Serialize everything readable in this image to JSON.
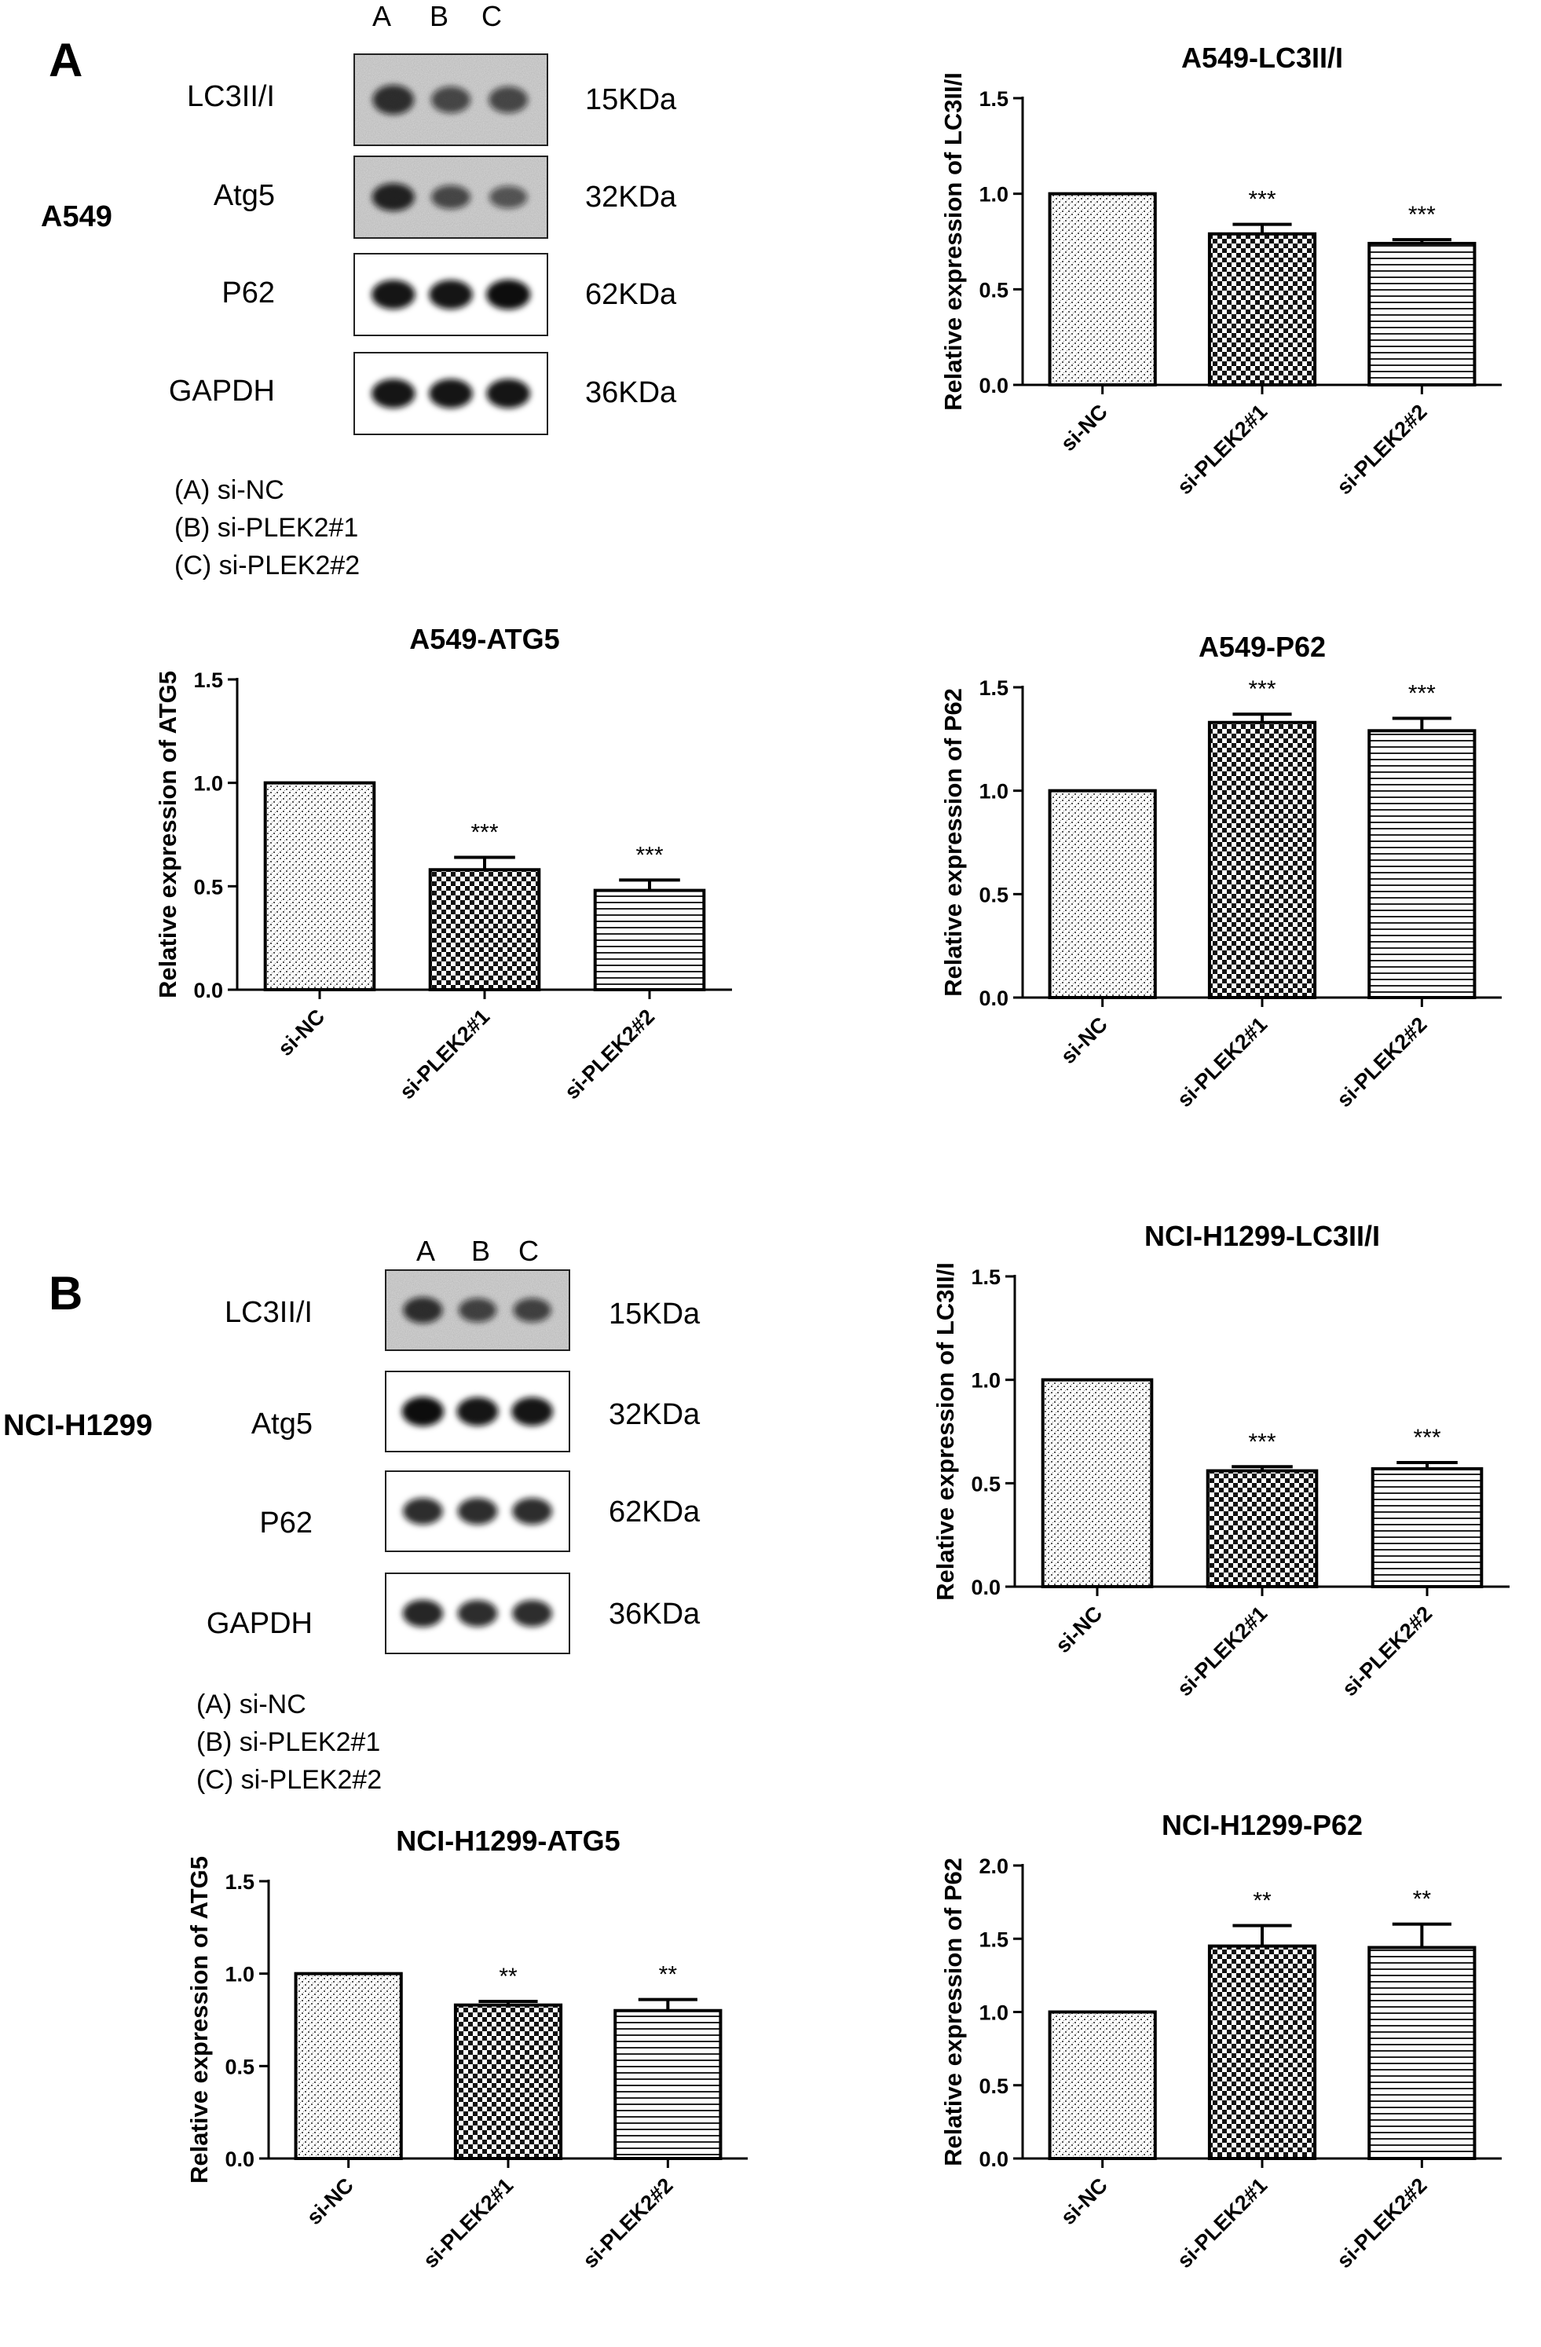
{
  "colors": {
    "axis": "#000000",
    "band": "#111111",
    "blot_bg": "#ffffff"
  },
  "patterns": [
    "speckle",
    "checker",
    "hlines"
  ],
  "panels": [
    {
      "letter": "A",
      "cell_line": "A549",
      "lanes": [
        "A",
        "B",
        "C"
      ],
      "blots": [
        {
          "protein": "LC3II/I",
          "kda": "15KDa",
          "bands": [
            0.75,
            0.55,
            0.55
          ],
          "bg": "grainy"
        },
        {
          "protein": "Atg5",
          "kda": "32KDa",
          "bands": [
            0.85,
            0.55,
            0.45
          ],
          "bg": "grainy"
        },
        {
          "protein": "P62",
          "kda": "62KDa",
          "bands": [
            0.95,
            0.95,
            1.0
          ],
          "bg": "clean"
        },
        {
          "protein": "GAPDH",
          "kda": "36KDa",
          "bands": [
            0.95,
            0.95,
            0.95
          ],
          "bg": "clean"
        }
      ],
      "legend": [
        "(A) si-NC",
        "(B) si-PLEK2#1",
        "(C) si-PLEK2#2"
      ]
    },
    {
      "letter": "B",
      "cell_line": "NCI-H1299",
      "lanes": [
        "A",
        "B",
        "C"
      ],
      "blots": [
        {
          "protein": "LC3II/I",
          "kda": "15KDa",
          "bands": [
            0.75,
            0.6,
            0.6
          ],
          "bg": "grainy"
        },
        {
          "protein": "Atg5",
          "kda": "32KDa",
          "bands": [
            1.0,
            0.95,
            0.95
          ],
          "bg": "clean"
        },
        {
          "protein": "P62",
          "kda": "62KDa",
          "bands": [
            0.8,
            0.8,
            0.8
          ],
          "bg": "clean"
        },
        {
          "protein": "GAPDH",
          "kda": "36KDa",
          "bands": [
            0.85,
            0.8,
            0.8
          ],
          "bg": "clean"
        }
      ],
      "legend": [
        "(A) si-NC",
        "(B) si-PLEK2#1",
        "(C) si-PLEK2#2"
      ]
    }
  ],
  "chart_data": [
    {
      "type": "bar",
      "title": "A549-LC3II/I",
      "ylabel": "Relative expression of LC3II/I",
      "categories": [
        "si-NC",
        "si-PLEK2#1",
        "si-PLEK2#2"
      ],
      "values": [
        1.0,
        0.79,
        0.74
      ],
      "errors": [
        0,
        0.05,
        0.02
      ],
      "significance": [
        "",
        "***",
        "***"
      ],
      "ylim": [
        0,
        1.5
      ],
      "yticks": [
        "0.0",
        "0.5",
        "1.0",
        "1.5"
      ]
    },
    {
      "type": "bar",
      "title": "A549-ATG5",
      "ylabel": "Relative expression of ATG5",
      "categories": [
        "si-NC",
        "si-PLEK2#1",
        "si-PLEK2#2"
      ],
      "values": [
        1.0,
        0.58,
        0.48
      ],
      "errors": [
        0,
        0.06,
        0.05
      ],
      "significance": [
        "",
        "***",
        "***"
      ],
      "ylim": [
        0,
        1.5
      ],
      "yticks": [
        "0.0",
        "0.5",
        "1.0",
        "1.5"
      ]
    },
    {
      "type": "bar",
      "title": "A549-P62",
      "ylabel": "Relative expression of P62",
      "categories": [
        "si-NC",
        "si-PLEK2#1",
        "si-PLEK2#2"
      ],
      "values": [
        1.0,
        1.33,
        1.29
      ],
      "errors": [
        0,
        0.04,
        0.06
      ],
      "significance": [
        "",
        "***",
        "***"
      ],
      "ylim": [
        0,
        1.5
      ],
      "yticks": [
        "0.0",
        "0.5",
        "1.0",
        "1.5"
      ]
    },
    {
      "type": "bar",
      "title": "NCI-H1299-LC3II/I",
      "ylabel": "Relative expression of LC3II/I",
      "categories": [
        "si-NC",
        "si-PLEK2#1",
        "si-PLEK2#2"
      ],
      "values": [
        1.0,
        0.56,
        0.57
      ],
      "errors": [
        0,
        0.02,
        0.03
      ],
      "significance": [
        "",
        "***",
        "***"
      ],
      "ylim": [
        0,
        1.5
      ],
      "yticks": [
        "0.0",
        "0.5",
        "1.0",
        "1.5"
      ]
    },
    {
      "type": "bar",
      "title": "NCI-H1299-ATG5",
      "ylabel": "Relative expression of ATG5",
      "categories": [
        "si-NC",
        "si-PLEK2#1",
        "si-PLEK2#2"
      ],
      "values": [
        1.0,
        0.83,
        0.8
      ],
      "errors": [
        0,
        0.02,
        0.06
      ],
      "significance": [
        "",
        "**",
        "**"
      ],
      "ylim": [
        0,
        1.5
      ],
      "yticks": [
        "0.0",
        "0.5",
        "1.0",
        "1.5"
      ]
    },
    {
      "type": "bar",
      "title": "NCI-H1299-P62",
      "ylabel": "Relative expression of P62",
      "categories": [
        "si-NC",
        "si-PLEK2#1",
        "si-PLEK2#2"
      ],
      "values": [
        1.0,
        1.45,
        1.44
      ],
      "errors": [
        0,
        0.14,
        0.16
      ],
      "significance": [
        "",
        "**",
        "**"
      ],
      "ylim": [
        0,
        2.0
      ],
      "yticks": [
        "0.0",
        "0.5",
        "1.0",
        "1.5",
        "2.0"
      ]
    }
  ]
}
